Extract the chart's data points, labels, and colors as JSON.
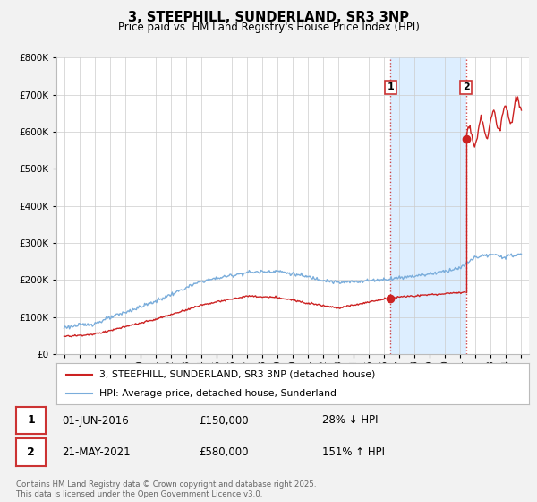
{
  "title": "3, STEEPHILL, SUNDERLAND, SR3 3NP",
  "subtitle": "Price paid vs. HM Land Registry's House Price Index (HPI)",
  "background_color": "#f2f2f2",
  "plot_background": "#ffffff",
  "hpi_color": "#7aaddb",
  "price_color": "#cc2222",
  "dashed_color": "#cc3333",
  "shade_color": "#ddeeff",
  "ylim": [
    0,
    800000
  ],
  "yticks": [
    0,
    100000,
    200000,
    300000,
    400000,
    500000,
    600000,
    700000,
    800000
  ],
  "ytick_labels": [
    "£0",
    "£100K",
    "£200K",
    "£300K",
    "£400K",
    "£500K",
    "£600K",
    "£700K",
    "£800K"
  ],
  "sale1_date": 2016.42,
  "sale1_price": 150000,
  "sale1_label": "1",
  "sale2_date": 2021.38,
  "sale2_price": 580000,
  "sale2_label": "2",
  "legend_line1": "3, STEEPHILL, SUNDERLAND, SR3 3NP (detached house)",
  "legend_line2": "HPI: Average price, detached house, Sunderland",
  "annotation1_date": "01-JUN-2016",
  "annotation1_price": "£150,000",
  "annotation1_hpi": "28% ↓ HPI",
  "annotation2_date": "21-MAY-2021",
  "annotation2_price": "£580,000",
  "annotation2_hpi": "151% ↑ HPI",
  "footer": "Contains HM Land Registry data © Crown copyright and database right 2025.\nThis data is licensed under the Open Government Licence v3.0.",
  "xmin": 1994.5,
  "xmax": 2025.5
}
